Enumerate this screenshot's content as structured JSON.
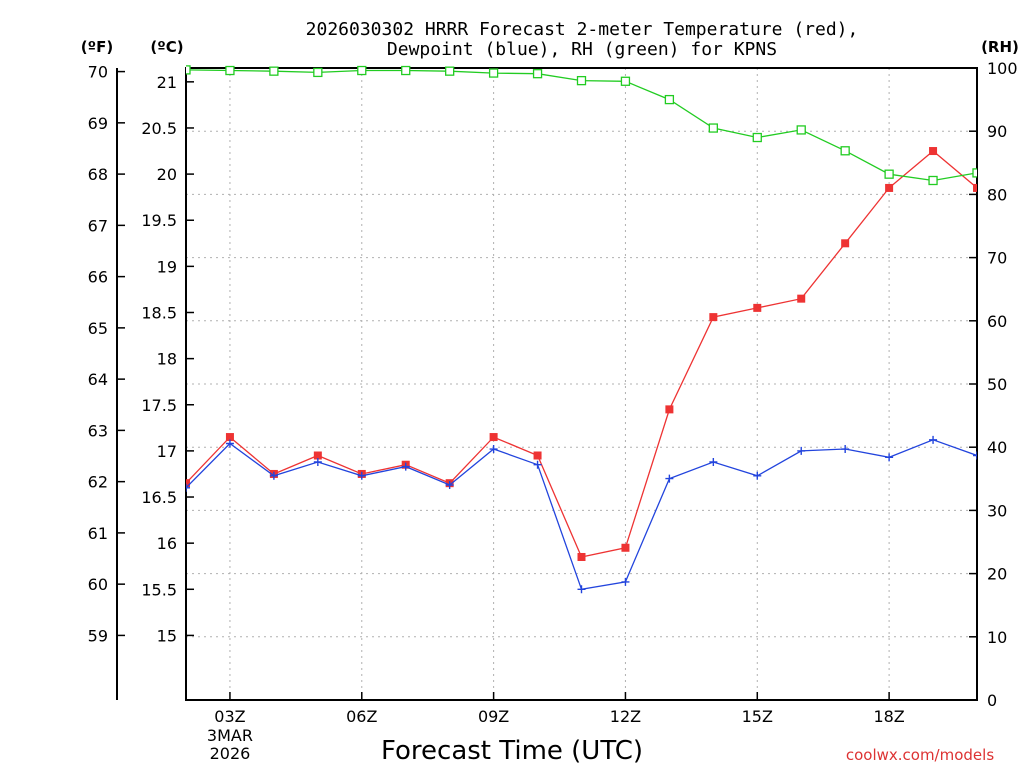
{
  "chart_data": {
    "type": "line",
    "title_line1": "2026030302 HRRR Forecast 2-meter Temperature (red),",
    "title_line2": "Dewpoint (blue), RH (green) for KPNS",
    "unit_f": "(ºF)",
    "unit_c": "(ºC)",
    "unit_rh": "(RH)",
    "xlabel": "Forecast Time (UTC)",
    "credit": "coolwx.com/models",
    "x_ticks": [
      {
        "hour": 3,
        "label": "03Z",
        "sub1": "3MAR",
        "sub2": "2026"
      },
      {
        "hour": 6,
        "label": "06Z"
      },
      {
        "hour": 9,
        "label": "09Z"
      },
      {
        "hour": 12,
        "label": "12Z"
      },
      {
        "hour": 15,
        "label": "15Z"
      },
      {
        "hour": 18,
        "label": "18Z"
      }
    ],
    "x_range_hours": [
      2,
      20
    ],
    "c_range": [
      14.3,
      21.15
    ],
    "rh_range": [
      0,
      100
    ],
    "c_ticks": [
      15,
      15.5,
      16,
      16.5,
      17,
      17.5,
      18,
      18.5,
      19,
      19.5,
      20,
      20.5,
      21
    ],
    "c_tick_labels": [
      "15",
      "15.5",
      "16",
      "16.5",
      "17",
      "17.5",
      "18",
      "18.5",
      "19",
      "19.5",
      "20",
      "20.5",
      "21"
    ],
    "f_ticks": [
      59,
      60,
      61,
      62,
      63,
      64,
      65,
      66,
      67,
      68,
      69,
      70
    ],
    "f_tick_labels": [
      "59",
      "60",
      "61",
      "62",
      "63",
      "64",
      "65",
      "66",
      "67",
      "68",
      "69",
      "70"
    ],
    "rh_ticks": [
      0,
      10,
      20,
      30,
      40,
      50,
      60,
      70,
      80,
      90,
      100
    ],
    "rh_tick_labels": [
      "0",
      "10",
      "20",
      "30",
      "40",
      "50",
      "60",
      "70",
      "80",
      "90",
      "100"
    ],
    "hours": [
      2,
      3,
      4,
      5,
      6,
      7,
      8,
      9,
      10,
      11,
      12,
      13,
      14,
      15,
      16,
      17,
      18,
      19,
      20
    ],
    "series": [
      {
        "name": "Temperature",
        "unit": "C",
        "color": "#ee3333",
        "marker": "filled-square",
        "values": [
          16.65,
          17.15,
          16.75,
          16.95,
          16.75,
          16.85,
          16.65,
          17.15,
          16.95,
          15.85,
          15.95,
          17.45,
          18.45,
          18.55,
          18.65,
          19.25,
          19.85,
          20.25,
          19.85
        ]
      },
      {
        "name": "Dewpoint",
        "unit": "C",
        "color": "#2244dd",
        "marker": "plus",
        "values": [
          16.6,
          17.08,
          16.73,
          16.88,
          16.73,
          16.83,
          16.63,
          17.02,
          16.85,
          15.5,
          15.58,
          16.7,
          16.88,
          16.73,
          17.0,
          17.02,
          16.93,
          17.12,
          16.95
        ]
      },
      {
        "name": "RH",
        "unit": "%",
        "color": "#22cc22",
        "marker": "open-square",
        "values": [
          99.7,
          99.6,
          99.5,
          99.3,
          99.6,
          99.6,
          99.5,
          99.2,
          99.1,
          98.0,
          97.9,
          95.0,
          90.5,
          89.0,
          90.2,
          86.9,
          83.2,
          82.2,
          83.4
        ]
      }
    ]
  }
}
